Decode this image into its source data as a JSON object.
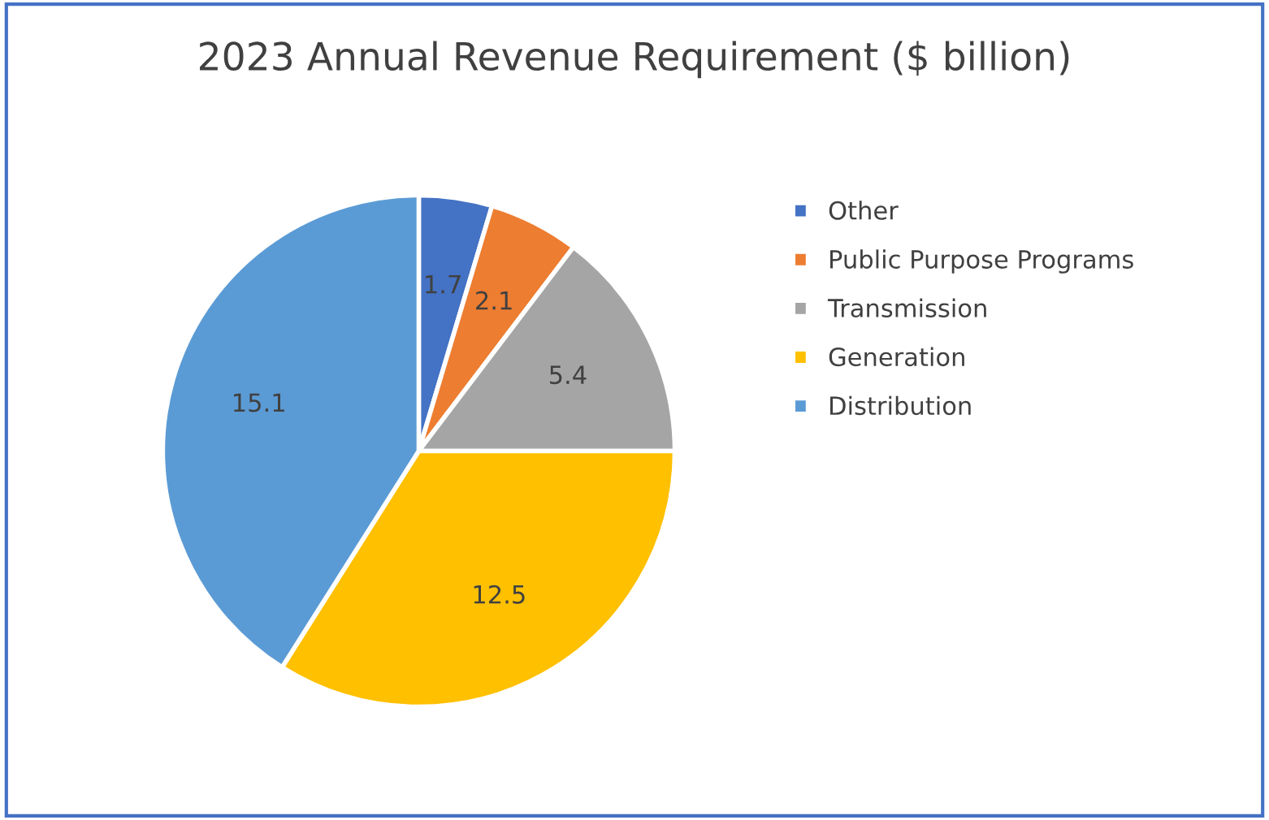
{
  "chart_data": {
    "type": "pie",
    "title": "2023 Annual Revenue Requirement ($ billion)",
    "categories": [
      "Other",
      "Public Purpose Programs",
      "Transmission",
      "Generation",
      "Distribution"
    ],
    "values": [
      1.7,
      2.1,
      5.4,
      12.5,
      15.1
    ],
    "colors": [
      "#4472c4",
      "#ed7d31",
      "#a5a5a5",
      "#ffc000",
      "#5b9bd5"
    ],
    "data_labels": true,
    "legend": "right"
  }
}
